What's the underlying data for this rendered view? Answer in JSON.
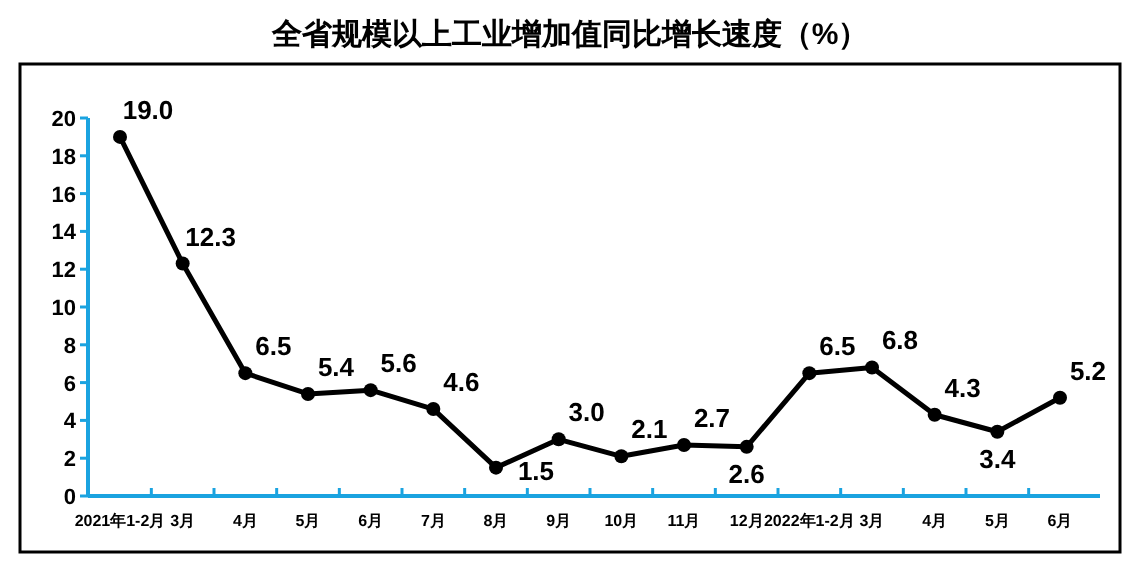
{
  "chart_data": {
    "type": "line",
    "title": "全省规模以上工业增加值同比增长速度（%）",
    "categories": [
      "2021年1-2月",
      "3月",
      "4月",
      "5月",
      "6月",
      "7月",
      "8月",
      "9月",
      "10月",
      "11月",
      "12月",
      "2022年1-2月",
      "3月",
      "4月",
      "5月",
      "6月"
    ],
    "values": [
      19.0,
      12.3,
      6.5,
      5.4,
      5.6,
      4.6,
      1.5,
      3.0,
      2.1,
      2.7,
      2.6,
      6.5,
      6.8,
      4.3,
      3.4,
      5.2
    ],
    "value_labels": [
      "19.0",
      "12.3",
      "6.5",
      "5.4",
      "5.6",
      "4.6",
      "1.5",
      "3.0",
      "2.1",
      "2.7",
      "2.6",
      "6.5",
      "6.8",
      "4.3",
      "3.4",
      "5.2"
    ],
    "color": "#000000",
    "marker": "circle",
    "ylim": [
      0,
      20
    ],
    "yticks": [
      0,
      2,
      4,
      6,
      8,
      10,
      12,
      14,
      16,
      18,
      20
    ]
  }
}
